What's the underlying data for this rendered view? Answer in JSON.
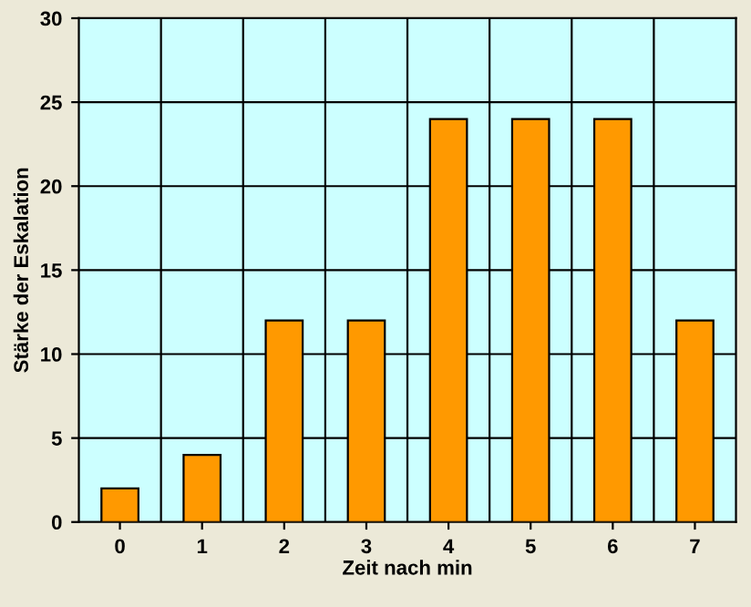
{
  "chart_data": {
    "type": "bar",
    "xlabel": "Zeit nach min",
    "ylabel": "Stärke der Eskalation",
    "categories": [
      "0",
      "1",
      "2",
      "3",
      "4",
      "5",
      "6",
      "7"
    ],
    "values": [
      2,
      4,
      12,
      12,
      24,
      24,
      24,
      12
    ],
    "color": "#ff9900",
    "ylim": [
      0,
      30
    ],
    "yticks": [
      0,
      5,
      10,
      15,
      20,
      25,
      30
    ],
    "grid": true,
    "legend": false
  }
}
